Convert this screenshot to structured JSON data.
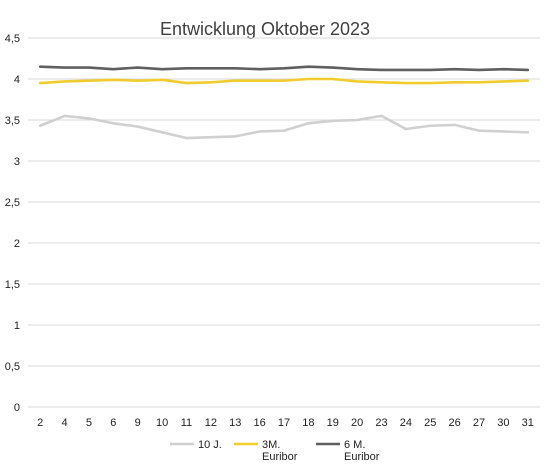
{
  "chart_data": {
    "type": "line",
    "title": "Entwicklung Oktober 2023",
    "xlabel": "",
    "ylabel": "",
    "ylim": [
      0,
      4.5
    ],
    "yticks": [
      "0",
      "0,5",
      "1",
      "1,5",
      "2",
      "2,5",
      "3",
      "3,5",
      "4",
      "4,5"
    ],
    "yticks_values": [
      0,
      0.5,
      1,
      1.5,
      2,
      2.5,
      3,
      3.5,
      4,
      4.5
    ],
    "grid": true,
    "legend_position": "bottom",
    "categories": [
      "2",
      "4",
      "5",
      "6",
      "9",
      "10",
      "11",
      "12",
      "13",
      "16",
      "17",
      "18",
      "19",
      "20",
      "23",
      "24",
      "25",
      "26",
      "27",
      "30",
      "31"
    ],
    "series": [
      {
        "name": "10 J.",
        "name_lines": [
          "10 J."
        ],
        "color": "#d0d0d0",
        "values": [
          3.43,
          3.55,
          3.52,
          3.46,
          3.42,
          3.35,
          3.28,
          3.29,
          3.3,
          3.36,
          3.37,
          3.46,
          3.49,
          3.5,
          3.55,
          3.39,
          3.43,
          3.44,
          3.37,
          3.36,
          3.35
        ]
      },
      {
        "name": "3M. Euribor",
        "name_lines": [
          "3M.",
          "Euribor"
        ],
        "color": "#f0cc2e",
        "values": [
          3.95,
          3.97,
          3.98,
          3.99,
          3.98,
          3.99,
          3.95,
          3.96,
          3.98,
          3.98,
          3.98,
          4.0,
          4.0,
          3.97,
          3.96,
          3.95,
          3.95,
          3.96,
          3.96,
          3.97,
          3.98
        ]
      },
      {
        "name": "6 M. Euribor",
        "name_lines": [
          "6 M.",
          "Euribor"
        ],
        "color": "#606060",
        "values": [
          4.15,
          4.14,
          4.14,
          4.12,
          4.14,
          4.12,
          4.13,
          4.13,
          4.13,
          4.12,
          4.13,
          4.15,
          4.14,
          4.12,
          4.11,
          4.11,
          4.11,
          4.12,
          4.11,
          4.12,
          4.11
        ]
      }
    ]
  }
}
